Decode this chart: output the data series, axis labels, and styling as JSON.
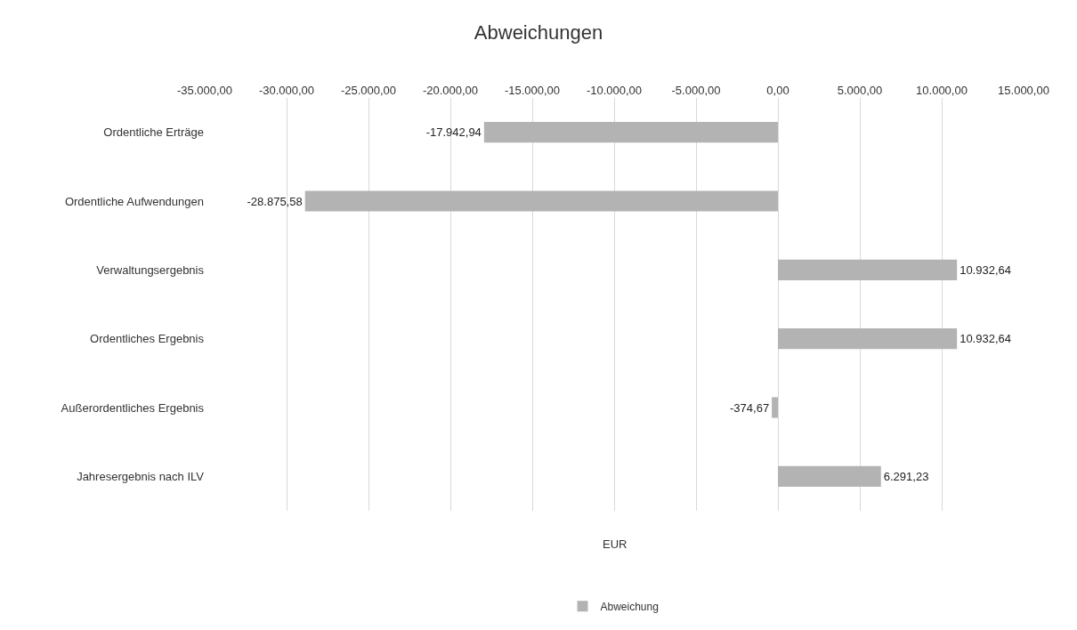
{
  "chart_data": {
    "type": "bar",
    "orientation": "horizontal",
    "title": "Abweichungen",
    "xlabel": "EUR",
    "categories": [
      "Ordentliche Erträge",
      "Ordentliche Aufwendungen",
      "Verwaltungsergebnis",
      "Ordentliches Ergebnis",
      "Außerordentliches Ergebnis",
      "Jahresergebnis nach ILV"
    ],
    "series": [
      {
        "name": "Abweichung",
        "color": "#b3b3b3",
        "values": [
          -17942.94,
          -28875.58,
          10932.64,
          10932.64,
          -374.67,
          6291.23
        ],
        "value_labels": [
          "-17.942,94",
          "-28.875,58",
          "10.932,64",
          "10.932,64",
          "-374,67",
          "6.291,23"
        ]
      }
    ],
    "xlim": [
      -35000,
      15000
    ],
    "xticks": [
      {
        "value": -35000,
        "label": "-35.000,00"
      },
      {
        "value": -30000,
        "label": "-30.000,00"
      },
      {
        "value": -25000,
        "label": "-25.000,00"
      },
      {
        "value": -20000,
        "label": "-20.000,00"
      },
      {
        "value": -15000,
        "label": "-15.000,00"
      },
      {
        "value": -10000,
        "label": "-10.000,00"
      },
      {
        "value": -5000,
        "label": "-5.000,00"
      },
      {
        "value": 0,
        "label": "0,00"
      },
      {
        "value": 5000,
        "label": "5.000,00"
      },
      {
        "value": 10000,
        "label": "10.000,00"
      },
      {
        "value": 15000,
        "label": "15.000,00"
      }
    ],
    "grid": "x",
    "legend": "bottom"
  }
}
